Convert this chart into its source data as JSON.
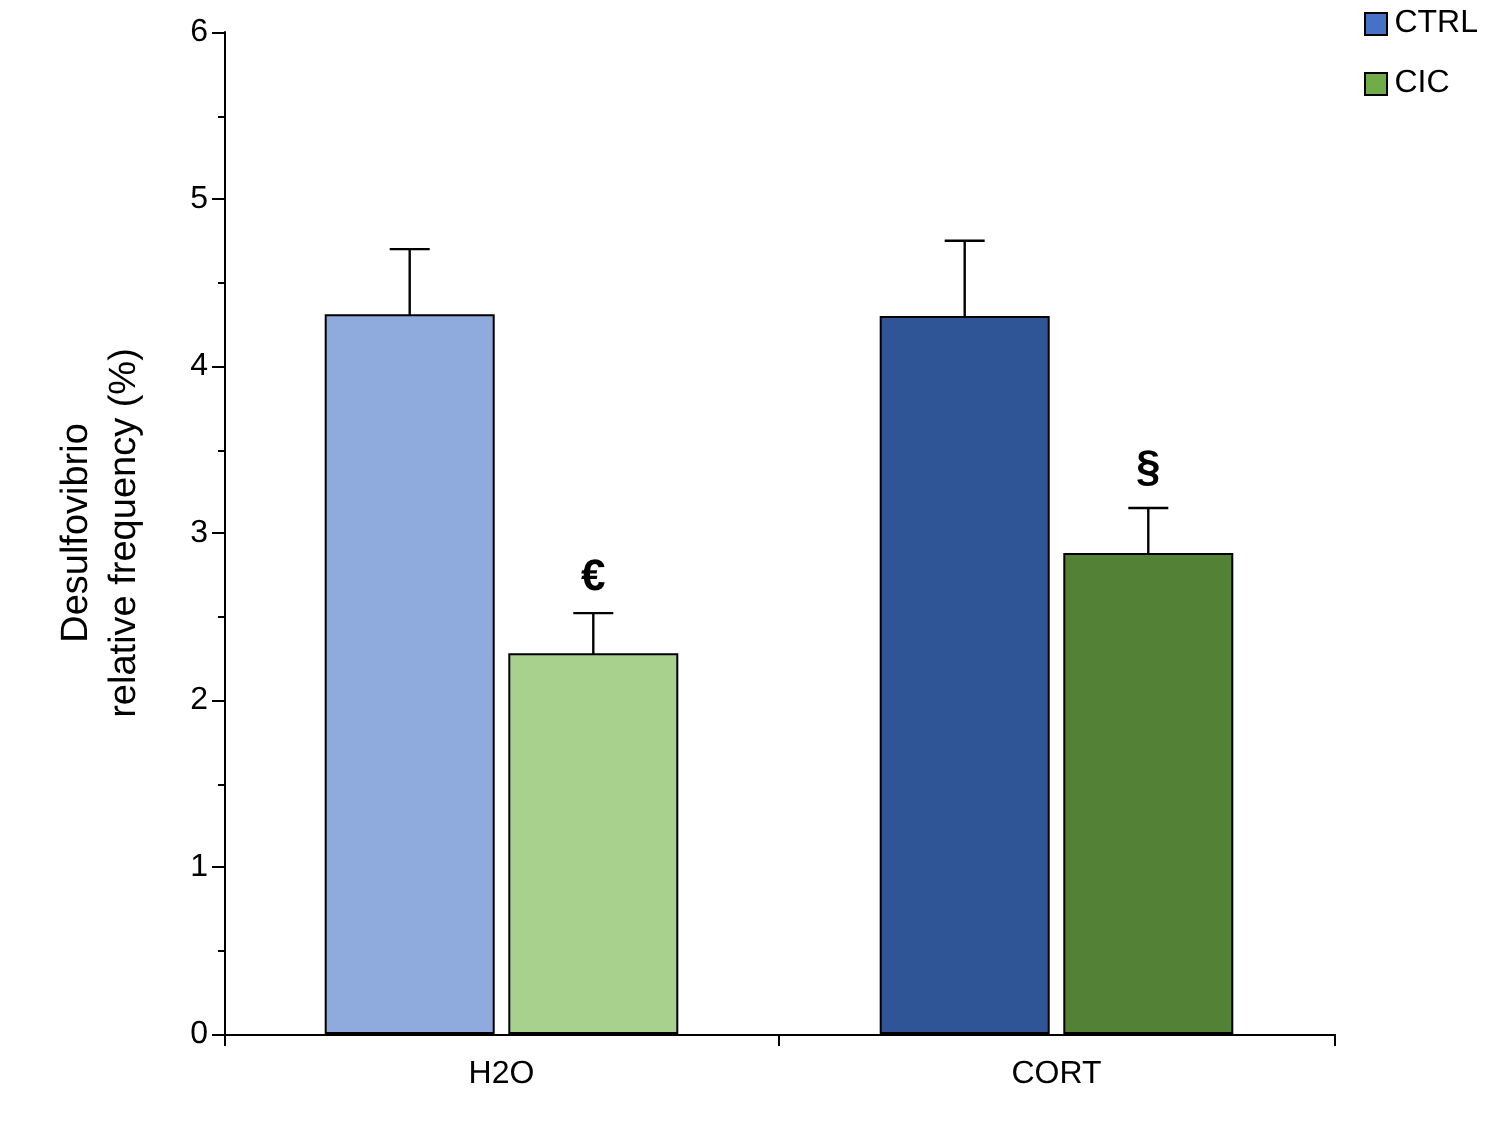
{
  "chart_data": {
    "type": "bar",
    "ylabel": "Desulfovibrio\nrelative frequency (%)",
    "categories": [
      "H2O",
      "CORT"
    ],
    "series": [
      {
        "name": "CTRL",
        "color": "#4472c4",
        "colors": [
          "#8faadc",
          "#2f5597"
        ],
        "values": [
          4.31,
          4.3
        ],
        "errors": [
          0.39,
          0.45
        ]
      },
      {
        "name": "CIC",
        "color": "#70ad47",
        "colors": [
          "#a9d18e",
          "#538135"
        ],
        "values": [
          2.28,
          2.88
        ],
        "errors": [
          0.24,
          0.27
        ]
      }
    ],
    "annotations": [
      {
        "text": "€",
        "x": "H2O",
        "y": 2.75
      },
      {
        "text": "§",
        "x": "CORT",
        "y": 3.4
      }
    ],
    "ylim": [
      0,
      6
    ],
    "yticks": [
      0,
      1,
      2,
      3,
      4,
      5,
      6
    ],
    "grid": false,
    "legend": "top right"
  }
}
